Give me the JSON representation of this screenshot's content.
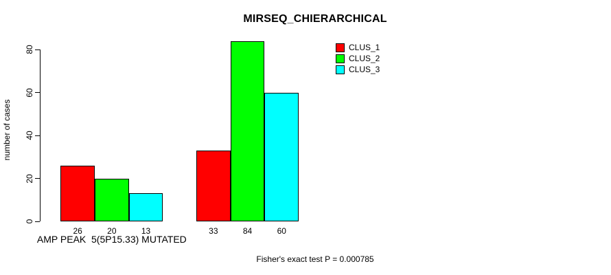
{
  "chart_data": {
    "type": "bar",
    "title": "MIRSEQ_CHIERARCHICAL",
    "ylabel": "number of cases",
    "xlabel": "",
    "ylim": [
      0,
      84
    ],
    "yticks": [
      0,
      20,
      40,
      60,
      80
    ],
    "grid": false,
    "legend_position": "top-right",
    "categories": [
      "AMP PEAK  5(5P15.33) MUTATED",
      ""
    ],
    "series": [
      {
        "name": "CLUS_1",
        "color": "#ff0000",
        "values": [
          26,
          33
        ]
      },
      {
        "name": "CLUS_2",
        "color": "#00ff00",
        "values": [
          20,
          84
        ]
      },
      {
        "name": "CLUS_3",
        "color": "#00ffff",
        "values": [
          13,
          60
        ]
      }
    ],
    "bar_value_labels": [
      [
        26,
        20,
        13
      ],
      [
        33,
        84,
        60
      ]
    ],
    "annotation": "Fisher's exact test P = 0.000785"
  }
}
